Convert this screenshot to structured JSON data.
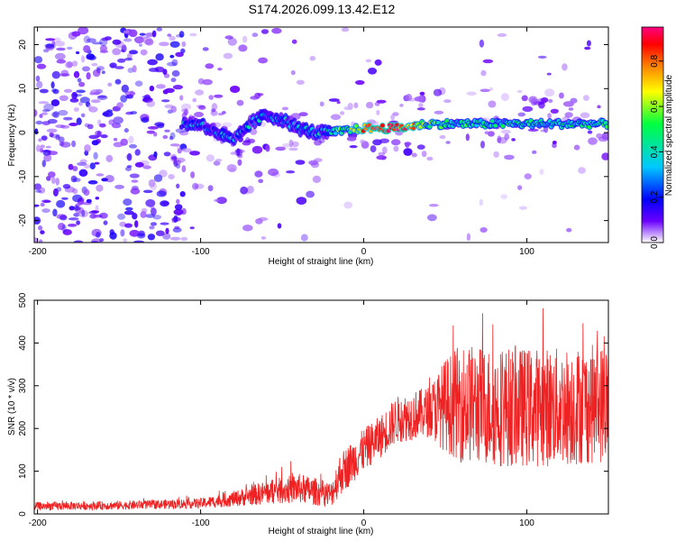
{
  "figure_title": "S174.2026.099.13.42.E12",
  "chart_data": [
    {
      "type": "heatmap",
      "title": "S174.2026.099.13.42.E12",
      "xlabel": "Height of straight line (km)",
      "ylabel": "Frequency (Hz)",
      "xlim": [
        -202,
        150
      ],
      "ylim": [
        -25,
        24
      ],
      "xticks": [
        -200,
        -100,
        0,
        100
      ],
      "yticks": [
        -20,
        -10,
        0,
        10,
        20
      ],
      "colorbar": {
        "label": "Normalized spectral amplitude",
        "range": [
          0,
          0.95
        ],
        "ticks": [
          0.0,
          0.2,
          0.4,
          0.6,
          0.8
        ],
        "colors": [
          "#ffffff",
          "#6a00ff",
          "#0000ff",
          "#00c8ff",
          "#00ff40",
          "#ffff00",
          "#ff8000",
          "#ff0000",
          "#ff0080"
        ]
      },
      "ridge": {
        "description": "dominant frequency trace",
        "points": [
          [
            -100,
            2
          ],
          [
            -90,
            0
          ],
          [
            -80,
            -2
          ],
          [
            -70,
            2
          ],
          [
            -60,
            4
          ],
          [
            -50,
            3
          ],
          [
            -40,
            1
          ],
          [
            -30,
            0
          ],
          [
            -20,
            0
          ],
          [
            0,
            1
          ],
          [
            20,
            1
          ],
          [
            40,
            2
          ],
          [
            60,
            2
          ],
          [
            80,
            2
          ],
          [
            100,
            2
          ],
          [
            120,
            2
          ],
          [
            150,
            2
          ]
        ],
        "peak_amplitude": 0.95,
        "peak_x": 15
      }
    },
    {
      "type": "line",
      "title": "",
      "xlabel": "Height of straight line (km)",
      "ylabel": "SNR (10 * v/v)",
      "xlim": [
        -202,
        150
      ],
      "ylim": [
        0,
        500
      ],
      "xticks": [
        -200,
        -100,
        0,
        100
      ],
      "yticks": [
        0,
        100,
        200,
        300,
        400,
        500
      ],
      "color": "#ee2222",
      "envelope": {
        "x": [
          -202,
          -150,
          -100,
          -80,
          -60,
          -40,
          -20,
          -15,
          0,
          10,
          20,
          40,
          50,
          60,
          80,
          100,
          120,
          150
        ],
        "mean": [
          18,
          20,
          25,
          35,
          50,
          60,
          45,
          90,
          150,
          180,
          220,
          240,
          255,
          260,
          250,
          250,
          250,
          260
        ],
        "spread": [
          10,
          10,
          12,
          18,
          28,
          35,
          30,
          50,
          50,
          50,
          55,
          60,
          110,
          140,
          140,
          140,
          140,
          140
        ]
      }
    }
  ]
}
